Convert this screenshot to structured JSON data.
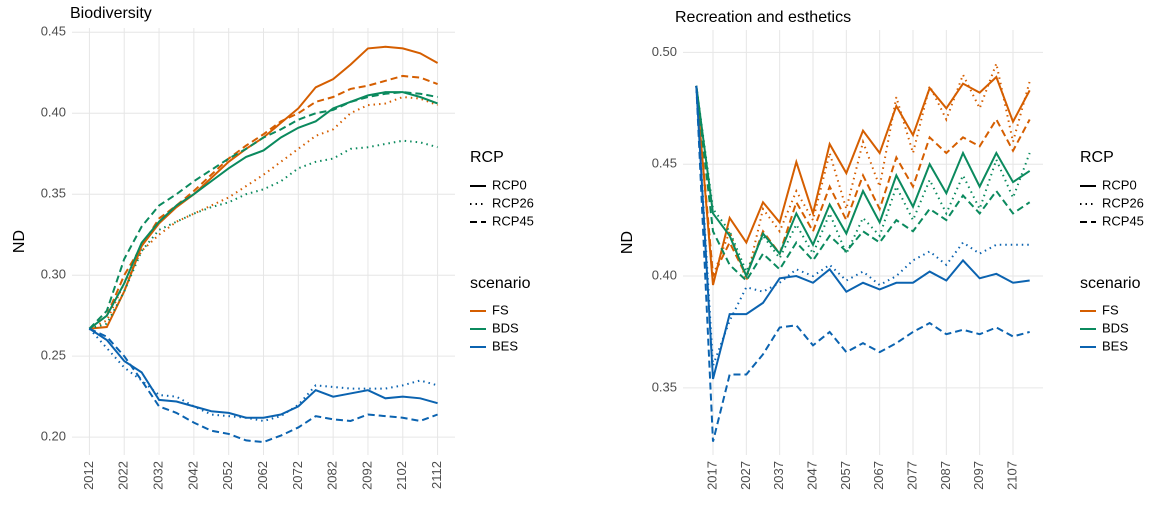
{
  "chart_data": [
    {
      "type": "line",
      "title": "Biodiversity",
      "y_label": "ND",
      "x": [
        2012,
        2017,
        2022,
        2027,
        2032,
        2037,
        2042,
        2047,
        2052,
        2057,
        2062,
        2067,
        2072,
        2077,
        2082,
        2087,
        2092,
        2097,
        2102,
        2107,
        2112
      ],
      "xlim": [
        2007,
        2117
      ],
      "xticks": [
        2012,
        2022,
        2032,
        2042,
        2052,
        2062,
        2072,
        2082,
        2092,
        2102,
        2112
      ],
      "ylim": [
        0.189,
        0.4526
      ],
      "yticks": [
        {
          "value": 0.2,
          "label": "0.20"
        },
        0.25,
        {
          "value": 0.3,
          "label": "0.30"
        },
        0.35,
        {
          "value": 0.4,
          "label": "0.40"
        },
        0.45
      ],
      "grid": true,
      "linetype_legend": {
        "title": "RCP",
        "labels": [
          "RCP0",
          "RCP26",
          "RCP45"
        ],
        "styles": [
          "solid",
          "dotted",
          "dashed"
        ]
      },
      "color_legend_title": "scenario",
      "series": [
        {
          "name": "FS",
          "color": "#D55E00",
          "values": [
            [
              0.267,
              0.268,
              0.29,
              0.318,
              0.332,
              0.342,
              0.35,
              0.36,
              0.37,
              0.378,
              0.385,
              0.394,
              0.403,
              0.416,
              0.421,
              0.43,
              0.44,
              0.441,
              0.44,
              0.437,
              0.431
            ],
            [
              0.267,
              0.272,
              0.295,
              0.315,
              0.325,
              0.333,
              0.338,
              0.343,
              0.348,
              0.355,
              0.362,
              0.37,
              0.378,
              0.386,
              0.39,
              0.4,
              0.405,
              0.406,
              0.41,
              0.409,
              0.405
            ],
            [
              0.267,
              0.275,
              0.3,
              0.318,
              0.335,
              0.343,
              0.352,
              0.362,
              0.372,
              0.38,
              0.387,
              0.395,
              0.4,
              0.407,
              0.41,
              0.415,
              0.417,
              0.42,
              0.423,
              0.422,
              0.418
            ]
          ]
        },
        {
          "name": "BDS",
          "color": "#0B8A5E",
          "values": [
            [
              0.267,
              0.275,
              0.295,
              0.32,
              0.333,
              0.343,
              0.35,
              0.358,
              0.366,
              0.373,
              0.377,
              0.385,
              0.391,
              0.395,
              0.403,
              0.407,
              0.411,
              0.413,
              0.413,
              0.41,
              0.406
            ],
            [
              0.267,
              0.27,
              0.29,
              0.315,
              0.328,
              0.333,
              0.338,
              0.342,
              0.345,
              0.35,
              0.353,
              0.358,
              0.366,
              0.37,
              0.372,
              0.378,
              0.379,
              0.381,
              0.383,
              0.382,
              0.379
            ],
            [
              0.267,
              0.278,
              0.31,
              0.33,
              0.343,
              0.35,
              0.358,
              0.365,
              0.372,
              0.378,
              0.385,
              0.39,
              0.396,
              0.4,
              0.402,
              0.407,
              0.41,
              0.412,
              0.413,
              0.412,
              0.41
            ]
          ]
        },
        {
          "name": "BES",
          "color": "#0B63B0",
          "values": [
            [
              0.267,
              0.26,
              0.247,
              0.24,
              0.223,
              0.222,
              0.219,
              0.216,
              0.215,
              0.212,
              0.212,
              0.214,
              0.219,
              0.229,
              0.225,
              0.227,
              0.229,
              0.224,
              0.225,
              0.224,
              0.221
            ],
            [
              0.267,
              0.255,
              0.243,
              0.235,
              0.226,
              0.225,
              0.219,
              0.214,
              0.213,
              0.212,
              0.21,
              0.213,
              0.22,
              0.232,
              0.231,
              0.23,
              0.23,
              0.23,
              0.232,
              0.235,
              0.232
            ],
            [
              0.267,
              0.262,
              0.25,
              0.235,
              0.219,
              0.215,
              0.209,
              0.204,
              0.202,
              0.198,
              0.197,
              0.201,
              0.206,
              0.213,
              0.211,
              0.21,
              0.214,
              0.213,
              0.212,
              0.21,
              0.214
            ]
          ]
        }
      ]
    },
    {
      "type": "line",
      "title": "Recreation and esthetics",
      "y_label": "ND",
      "x": [
        2012,
        2017,
        2022,
        2027,
        2032,
        2037,
        2042,
        2047,
        2052,
        2057,
        2062,
        2067,
        2072,
        2077,
        2082,
        2087,
        2092,
        2097,
        2102,
        2107,
        2112
      ],
      "xlim": [
        2008,
        2116
      ],
      "xticks": [
        2017,
        2027,
        2037,
        2047,
        2057,
        2067,
        2077,
        2087,
        2097,
        2107
      ],
      "ylim": [
        0.32,
        0.51
      ],
      "yticks": [
        0.35,
        {
          "value": 0.4,
          "label": "0.40"
        },
        0.45,
        {
          "value": 0.5,
          "label": "0.50"
        }
      ],
      "grid": true,
      "linetype_legend": {
        "title": "RCP",
        "labels": [
          "RCP0",
          "RCP26",
          "RCP45"
        ],
        "styles": [
          "solid",
          "dotted",
          "dashed"
        ]
      },
      "color_legend_title": "scenario",
      "series": [
        {
          "name": "FS",
          "color": "#D55E00",
          "values": [
            [
              0.485,
              0.396,
              0.426,
              0.415,
              0.433,
              0.424,
              0.451,
              0.428,
              0.459,
              0.446,
              0.465,
              0.455,
              0.476,
              0.463,
              0.484,
              0.475,
              0.486,
              0.482,
              0.489,
              0.469,
              0.483
            ],
            [
              0.485,
              0.4,
              0.42,
              0.398,
              0.43,
              0.42,
              0.438,
              0.425,
              0.455,
              0.43,
              0.46,
              0.44,
              0.48,
              0.455,
              0.485,
              0.47,
              0.49,
              0.475,
              0.495,
              0.46,
              0.487
            ],
            [
              0.485,
              0.4,
              0.415,
              0.4,
              0.42,
              0.41,
              0.433,
              0.42,
              0.44,
              0.425,
              0.445,
              0.43,
              0.453,
              0.44,
              0.462,
              0.455,
              0.462,
              0.458,
              0.47,
              0.456,
              0.47
            ]
          ]
        },
        {
          "name": "BDS",
          "color": "#0B8A5E",
          "values": [
            [
              0.485,
              0.428,
              0.418,
              0.4,
              0.419,
              0.41,
              0.428,
              0.414,
              0.432,
              0.419,
              0.438,
              0.424,
              0.445,
              0.431,
              0.45,
              0.437,
              0.455,
              0.44,
              0.455,
              0.442,
              0.447
            ],
            [
              0.485,
              0.43,
              0.42,
              0.402,
              0.418,
              0.408,
              0.423,
              0.41,
              0.428,
              0.41,
              0.426,
              0.418,
              0.44,
              0.425,
              0.443,
              0.428,
              0.445,
              0.43,
              0.452,
              0.435,
              0.455
            ],
            [
              0.485,
              0.42,
              0.405,
              0.398,
              0.41,
              0.403,
              0.415,
              0.407,
              0.418,
              0.411,
              0.42,
              0.415,
              0.425,
              0.42,
              0.43,
              0.425,
              0.436,
              0.428,
              0.438,
              0.428,
              0.433
            ]
          ]
        },
        {
          "name": "BES",
          "color": "#0B63B0",
          "values": [
            [
              0.485,
              0.354,
              0.383,
              0.383,
              0.388,
              0.399,
              0.4,
              0.397,
              0.403,
              0.393,
              0.397,
              0.394,
              0.397,
              0.397,
              0.402,
              0.398,
              0.407,
              0.399,
              0.401,
              0.397,
              0.398
            ],
            [
              0.485,
              0.36,
              0.38,
              0.395,
              0.393,
              0.397,
              0.403,
              0.4,
              0.405,
              0.398,
              0.402,
              0.396,
              0.4,
              0.407,
              0.411,
              0.405,
              0.415,
              0.41,
              0.414,
              0.414,
              0.414
            ],
            [
              0.485,
              0.326,
              0.356,
              0.356,
              0.365,
              0.377,
              0.378,
              0.369,
              0.375,
              0.366,
              0.37,
              0.366,
              0.37,
              0.375,
              0.379,
              0.374,
              0.376,
              0.374,
              0.377,
              0.373,
              0.375
            ]
          ]
        }
      ]
    }
  ]
}
